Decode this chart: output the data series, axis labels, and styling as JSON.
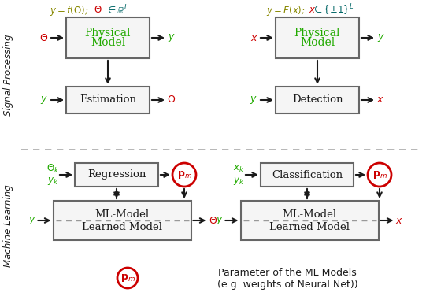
{
  "bg": "#ffffff",
  "green": "#22aa00",
  "red": "#cc0000",
  "teal": "#006666",
  "olive": "#888800",
  "black": "#1a1a1a",
  "box_edge": "#666666",
  "box_fill": "#f5f5f5",
  "sep_color": "#aaaaaa",
  "sp_label": "Signal Processing",
  "ml_label": "Machine Learning",
  "legend_line1": "Parameter of the ML Models",
  "legend_line2": "(e.g. weights of Neural Net))"
}
